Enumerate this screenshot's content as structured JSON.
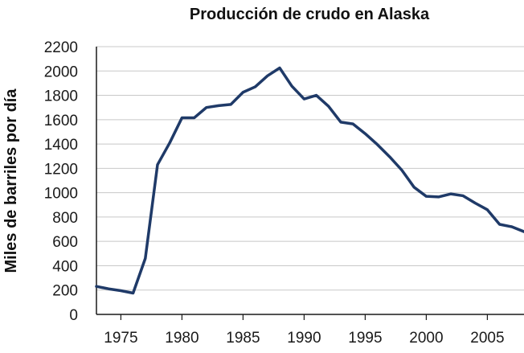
{
  "chart_data": {
    "type": "line",
    "title": "Producción de crudo en Alaska",
    "xlabel": "",
    "ylabel": "Miles de barriles por día",
    "xlim": [
      1973,
      2008
    ],
    "ylim": [
      0,
      2200
    ],
    "x_ticks": [
      1975,
      1980,
      1985,
      1990,
      1995,
      2000,
      2005
    ],
    "x_tick_labels": [
      "1975",
      "1980",
      "1985",
      "1990",
      "1995",
      "2000",
      "2005"
    ],
    "y_ticks": [
      0,
      200,
      400,
      600,
      800,
      1000,
      1200,
      1400,
      1600,
      1800,
      2000,
      2200
    ],
    "y_tick_labels": [
      "0",
      "200",
      "400",
      "600",
      "800",
      "1000",
      "1200",
      "1400",
      "1600",
      "1800",
      "2000",
      "2200"
    ],
    "grid": "horizontal",
    "line_color": "#1f3a68",
    "series": [
      {
        "x": [
          1973,
          1974,
          1975,
          1976,
          1977,
          1978,
          1979,
          1980,
          1981,
          1982,
          1983,
          1984,
          1985,
          1986,
          1987,
          1988,
          1989,
          1990,
          1991,
          1992,
          1993,
          1994,
          1995,
          1996,
          1997,
          1998,
          1999,
          2000,
          2001,
          2002,
          2003,
          2004,
          2005,
          2006,
          2007,
          2008
        ],
        "values": [
          230,
          210,
          195,
          175,
          460,
          1230,
          1410,
          1615,
          1615,
          1700,
          1715,
          1725,
          1825,
          1870,
          1960,
          2025,
          1875,
          1770,
          1800,
          1710,
          1580,
          1565,
          1485,
          1395,
          1295,
          1185,
          1045,
          970,
          965,
          990,
          975,
          915,
          860,
          740,
          720,
          680
        ]
      }
    ]
  }
}
